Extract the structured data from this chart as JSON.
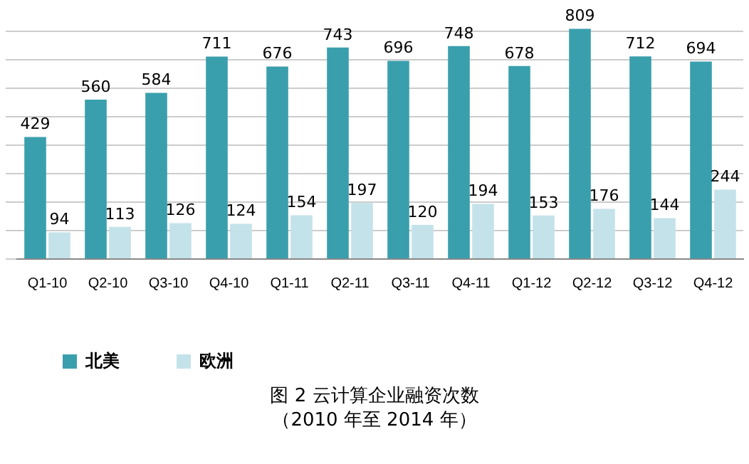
{
  "chart_data": {
    "type": "bar",
    "title": "图 2 云计算企业融资次数",
    "subtitle": "（2010 年至 2014 年）",
    "categories": [
      "Q1-10",
      "Q2-10",
      "Q3-10",
      "Q4-10",
      "Q1-11",
      "Q2-11",
      "Q3-11",
      "Q4-11",
      "Q1-12",
      "Q2-12",
      "Q3-12",
      "Q4-12"
    ],
    "series": [
      {
        "name": "北美",
        "color": "#3a9fac",
        "values": [
          429,
          560,
          584,
          711,
          676,
          743,
          696,
          748,
          678,
          809,
          712,
          694
        ]
      },
      {
        "name": "欧洲",
        "color": "#c4e2e9",
        "values": [
          94,
          113,
          126,
          124,
          154,
          197,
          120,
          194,
          153,
          176,
          144,
          244
        ]
      }
    ],
    "ylim": [
      0,
      820
    ],
    "yticks": [
      {
        "value": 0,
        "label": null
      },
      {
        "value": 100,
        "label": null
      },
      {
        "value": 200,
        "label": null
      },
      {
        "value": 300,
        "label": null
      },
      {
        "value": 400,
        "label": null
      },
      {
        "value": 500,
        "label": null
      },
      {
        "value": 600,
        "label": null
      },
      {
        "value": 700,
        "label": null
      },
      {
        "value": 800,
        "label": null
      }
    ],
    "grid": "y",
    "legend": "bottom left",
    "data_labels": true
  }
}
